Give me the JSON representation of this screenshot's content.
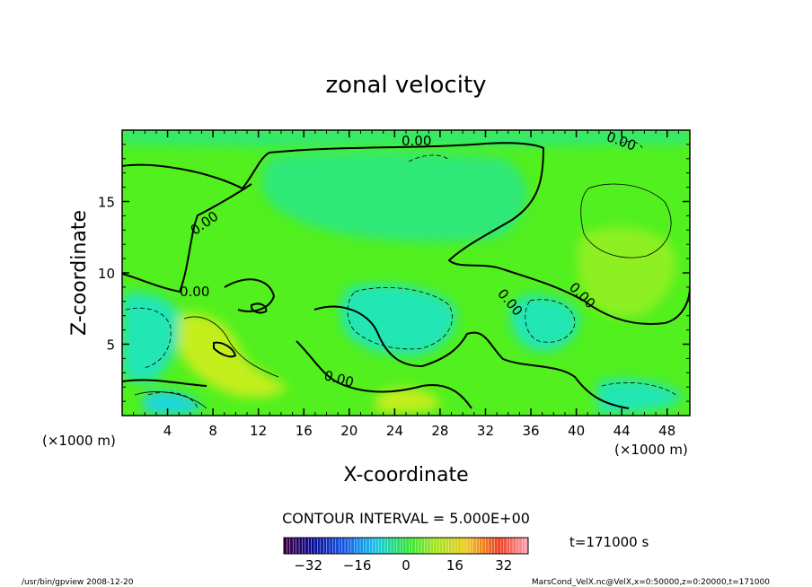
{
  "chart_data": {
    "type": "heatmap",
    "title": "zonal velocity",
    "xlabel": "X-coordinate",
    "ylabel": "Z-coordinate",
    "x_unit_label": "(×1000 m)",
    "z_unit_label": "(×1000 m)",
    "xlim": [
      0,
      50
    ],
    "ylim": [
      0,
      20
    ],
    "x_ticks": [
      4,
      8,
      12,
      16,
      20,
      24,
      28,
      32,
      36,
      40,
      44,
      48
    ],
    "y_ticks": [
      5,
      10,
      15
    ],
    "contour_interval_text": "CONTOUR INTERVAL = 5.000E+00",
    "contour_label": "0.00",
    "time_text": "t=171000 s",
    "colorbar": {
      "range": [
        -40,
        40
      ],
      "ticks": [
        -32,
        -16,
        0,
        16,
        32
      ]
    },
    "footer_left": "/usr/bin/gpview  2008-12-20",
    "footer_right": "MarsCond_VelX.nc@VelX,x=0:50000,z=0:20000,t=171000",
    "colors": {
      "neutral": "#52f01e",
      "weak_positive": "#8ef020",
      "positive": "#c4ee1c",
      "weak_negative": "#2ee878",
      "negative": "#22e6b4",
      "strong_negative": "#1cd6e0"
    }
  }
}
